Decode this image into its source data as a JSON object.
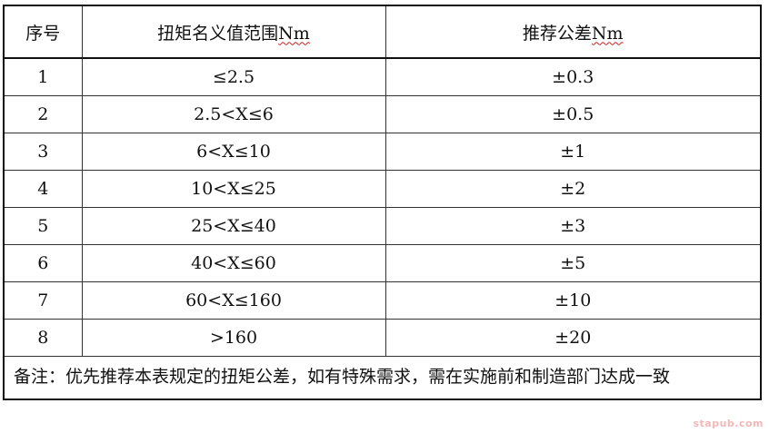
{
  "table": {
    "headers": {
      "no": "序号",
      "range_text": "扭矩名义值范围",
      "range_unit": "Nm",
      "tolerance_text": "推荐公差",
      "tolerance_unit": "Nm"
    },
    "rows": [
      {
        "no": "1",
        "range": "≤2.5",
        "tolerance": "±0.3"
      },
      {
        "no": "2",
        "range": "2.5<X≤6",
        "tolerance": "±0.5"
      },
      {
        "no": "3",
        "range": "6<X≤10",
        "tolerance": "±1"
      },
      {
        "no": "4",
        "range": "10<X≤25",
        "tolerance": "±2"
      },
      {
        "no": "5",
        "range": "25<X≤40",
        "tolerance": "±3"
      },
      {
        "no": "6",
        "range": "40<X≤60",
        "tolerance": "±5"
      },
      {
        "no": "7",
        "range": "60<X≤160",
        "tolerance": "±10"
      },
      {
        "no": "8",
        "range": ">160",
        "tolerance": "±20"
      }
    ],
    "note": "备注：优先推荐本表规定的扭矩公差，如有特殊需求，需在实施前和制造部门达成一致"
  },
  "watermark": "stapub.com"
}
